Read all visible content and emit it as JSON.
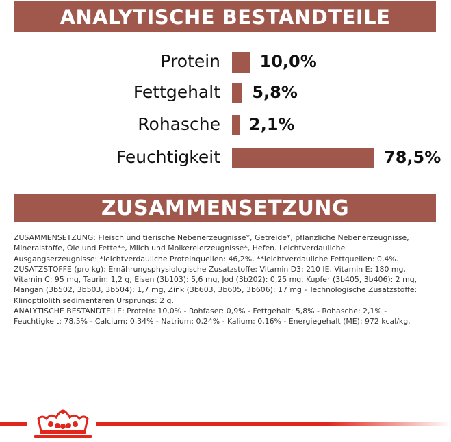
{
  "analysis": {
    "title": "ANALYTISCHE BESTANDTEILE",
    "rows": [
      {
        "label": "Protein",
        "value_text": "10,0%",
        "percent": 10.0
      },
      {
        "label": "Fettgehalt",
        "value_text": "5,8%",
        "percent": 5.8
      },
      {
        "label": "Rohasche",
        "value_text": "2,1%",
        "percent": 2.1
      },
      {
        "label": "Feuchtigkeit",
        "value_text": "78,5%",
        "percent": 78.5
      }
    ]
  },
  "composition": {
    "title": "ZUSAMMENSETZUNG",
    "lines": [
      "ZUSAMMENSETZUNG: Fleisch und tierische Nebenerzeugnisse*, Getreide*, pflanzliche Nebenerzeugnisse,",
      "Mineralstoffe, Öle und Fette**, Milch und Molkereierzeugnisse*, Hefen. Leichtverdauliche",
      "Ausgangserzeugnisse: *leichtverdauliche Proteinquellen: 46,2%, **leichtverdauliche Fettquellen: 0,4%.",
      "ZUSATZSTOFFE (pro kg): Ernährungsphysiologische Zusatzstoffe: Vitamin D3: 210 IE, Vitamin E: 180 mg,",
      "Vitamin C: 95 mg, Taurin: 1,2 g, Eisen (3b103): 5,6 mg, Jod (3b202): 0,25 mg, Kupfer (3b405, 3b406): 2 mg,",
      "Mangan (3b502, 3b503, 3b504): 1,7 mg, Zink (3b603, 3b605, 3b606): 17 mg - Technologische Zusatzstoffe:",
      "Klinoptilolith sedimentären Ursprungs: 2 g.",
      "ANALYTISCHE BESTANDTEILE: Protein: 10,0% - Rohfaser: 0,9% - Fettgehalt: 5,8% - Rohasche: 2,1% -",
      "Feuchtigkeit: 78,5% - Calcium: 0,34% - Natrium: 0,24% - Kalium: 0,16% - Energiegehalt (ME): 972 kcal/kg."
    ]
  },
  "brand": {
    "logo_icon": "crown-icon",
    "color": "#e1261c"
  },
  "colors": {
    "accent": "#a0584c",
    "text": "#111111"
  }
}
